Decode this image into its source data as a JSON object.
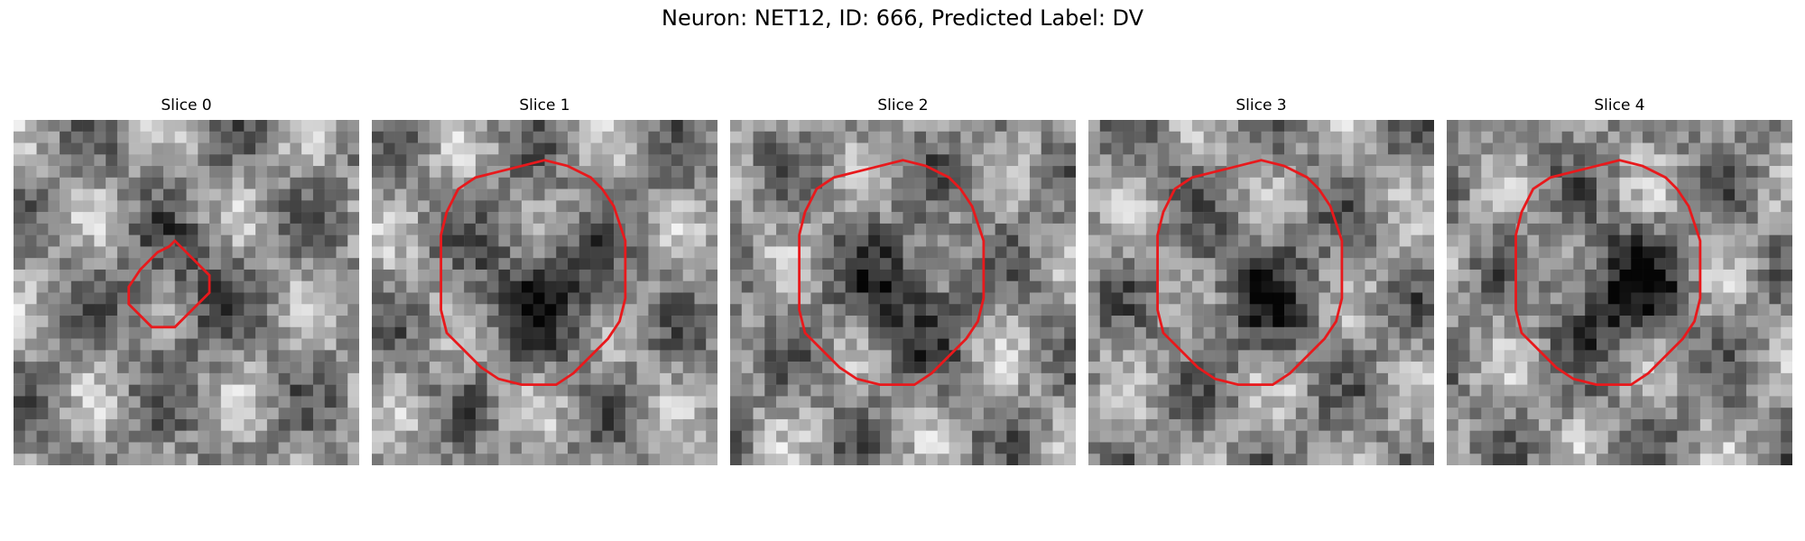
{
  "figure": {
    "title": "Neuron: NET12, ID: 666, Predicted Label: DV"
  },
  "panels": [
    {
      "title": "Slice 0",
      "seed": 11,
      "center_dark": 0.3,
      "outline": "small"
    },
    {
      "title": "Slice 1",
      "seed": 23,
      "center_dark": 0.55,
      "outline": "large"
    },
    {
      "title": "Slice 2",
      "seed": 37,
      "center_dark": 0.5,
      "outline": "large"
    },
    {
      "title": "Slice 3",
      "seed": 41,
      "center_dark": 0.45,
      "outline": "large"
    },
    {
      "title": "Slice 4",
      "seed": 59,
      "center_dark": 0.65,
      "outline": "large"
    }
  ],
  "colors": {
    "outline": "#e8191c"
  }
}
